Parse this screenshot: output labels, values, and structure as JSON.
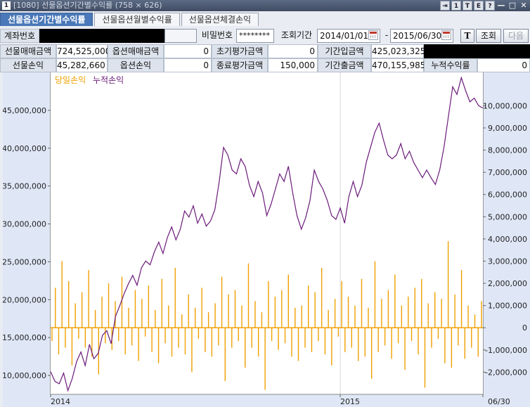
{
  "window": {
    "app_icon": "1",
    "title": "[1080] 선물옵션기간별수익률 (758 × 626)",
    "buttons": [
      "⇥",
      "1",
      "T",
      "E",
      "?",
      "—",
      "□",
      "✕"
    ]
  },
  "tabs": [
    {
      "label": "선물옵션기간별수익률",
      "active": true
    },
    {
      "label": "선물옵션월별수익률",
      "active": false
    },
    {
      "label": "선물옵션체결손익",
      "active": false
    }
  ],
  "form": {
    "account_label": "계좌번호",
    "password_label": "비밀번호",
    "password_value": "********",
    "period_label": "조회기간",
    "start_date": "2014/01/01",
    "date_sep": "-",
    "end_date": "2015/06/30",
    "t_button": "T",
    "search_button": "조회",
    "next_button": "다음"
  },
  "summary": {
    "row1": [
      {
        "label": "선물매매금액",
        "value": "724,525,000"
      },
      {
        "label": "옵션매매금액",
        "value": "0"
      },
      {
        "label": "초기평가금액",
        "value": "0"
      },
      {
        "label": "기간입금액",
        "value": "425,023,325"
      }
    ],
    "row2": [
      {
        "label": "선물손익",
        "value": "45,282,660"
      },
      {
        "label": "옵션손익",
        "value": "0"
      },
      {
        "label": "종료평가금액",
        "value": "150,000"
      },
      {
        "label": "기간출금액",
        "value": "470,155,985"
      },
      {
        "label": "누적수익률",
        "value": "0"
      }
    ]
  },
  "colors": {
    "daily": "#f0a000",
    "cumulative": "#6b1a7a",
    "active_tab": "#4a78b8"
  },
  "chart_data": {
    "type": "bar+line",
    "legend": [
      {
        "name": "당일손익",
        "color": "#f0a000"
      },
      {
        "name": "누적손익",
        "color": "#6b1a7a"
      }
    ],
    "left_axis": {
      "min": 7500000,
      "max": 50000000,
      "ticks": [
        "10,000,000",
        "15,000,000",
        "20,000,000",
        "25,000,000",
        "30,000,000",
        "35,000,000",
        "40,000,000",
        "45,000,000"
      ],
      "tick_values": [
        10000000,
        15000000,
        20000000,
        25000000,
        30000000,
        35000000,
        40000000,
        45000000
      ]
    },
    "right_axis": {
      "min": -3000000,
      "max": 11500000,
      "ticks": [
        "10,000,000",
        "9,000,000",
        "8,000,000",
        "7,000,000",
        "6,000,000",
        "5,000,000",
        "4,000,000",
        "3,000,000",
        "2,000,000",
        "1,000,000",
        "0",
        "-1,000,000",
        "-2,000,000"
      ],
      "tick_values": [
        10000000,
        9000000,
        8000000,
        7000000,
        6000000,
        5000000,
        4000000,
        3000000,
        2000000,
        1000000,
        0,
        -1000000,
        -2000000
      ]
    },
    "x_labels": [
      {
        "label": "2014",
        "pos": 0.0
      },
      {
        "label": "2015",
        "pos": 0.67
      },
      {
        "label": "06/30",
        "pos": 1.0
      }
    ],
    "cumulative_series": {
      "name": "누적손익",
      "points": [
        [
          0.0,
          10500000
        ],
        [
          0.01,
          9200000
        ],
        [
          0.02,
          8900000
        ],
        [
          0.03,
          10300000
        ],
        [
          0.04,
          8000000
        ],
        [
          0.05,
          9600000
        ],
        [
          0.06,
          11800000
        ],
        [
          0.07,
          13100000
        ],
        [
          0.08,
          11300000
        ],
        [
          0.09,
          14100000
        ],
        [
          0.1,
          12200000
        ],
        [
          0.11,
          12900000
        ],
        [
          0.12,
          15300000
        ],
        [
          0.13,
          15900000
        ],
        [
          0.14,
          14200000
        ],
        [
          0.15,
          17800000
        ],
        [
          0.16,
          19200000
        ],
        [
          0.17,
          20800000
        ],
        [
          0.18,
          22100000
        ],
        [
          0.19,
          23200000
        ],
        [
          0.2,
          21900000
        ],
        [
          0.21,
          24200000
        ],
        [
          0.22,
          25100000
        ],
        [
          0.23,
          24600000
        ],
        [
          0.24,
          26300000
        ],
        [
          0.25,
          27600000
        ],
        [
          0.26,
          26100000
        ],
        [
          0.27,
          28200000
        ],
        [
          0.28,
          29600000
        ],
        [
          0.29,
          27900000
        ],
        [
          0.3,
          29300000
        ],
        [
          0.31,
          31700000
        ],
        [
          0.32,
          30900000
        ],
        [
          0.33,
          32400000
        ],
        [
          0.34,
          30100000
        ],
        [
          0.35,
          31300000
        ],
        [
          0.36,
          29700000
        ],
        [
          0.37,
          30400000
        ],
        [
          0.38,
          31900000
        ],
        [
          0.39,
          35600000
        ],
        [
          0.4,
          40100000
        ],
        [
          0.41,
          39100000
        ],
        [
          0.42,
          37100000
        ],
        [
          0.43,
          36600000
        ],
        [
          0.44,
          38600000
        ],
        [
          0.45,
          37600000
        ],
        [
          0.46,
          35100000
        ],
        [
          0.47,
          33600000
        ],
        [
          0.48,
          35600000
        ],
        [
          0.49,
          34100000
        ],
        [
          0.5,
          31100000
        ],
        [
          0.51,
          32600000
        ],
        [
          0.52,
          34600000
        ],
        [
          0.53,
          36600000
        ],
        [
          0.54,
          35600000
        ],
        [
          0.55,
          37600000
        ],
        [
          0.56,
          34100000
        ],
        [
          0.57,
          31100000
        ],
        [
          0.58,
          29300000
        ],
        [
          0.59,
          30800000
        ],
        [
          0.6,
          33100000
        ],
        [
          0.61,
          37100000
        ],
        [
          0.62,
          35600000
        ],
        [
          0.63,
          34600000
        ],
        [
          0.64,
          33100000
        ],
        [
          0.65,
          31100000
        ],
        [
          0.66,
          30600000
        ],
        [
          0.67,
          32100000
        ],
        [
          0.68,
          30100000
        ],
        [
          0.69,
          33600000
        ],
        [
          0.7,
          35600000
        ],
        [
          0.71,
          33600000
        ],
        [
          0.72,
          35100000
        ],
        [
          0.73,
          38100000
        ],
        [
          0.74,
          40100000
        ],
        [
          0.75,
          42100000
        ],
        [
          0.76,
          43300000
        ],
        [
          0.77,
          41100000
        ],
        [
          0.78,
          39100000
        ],
        [
          0.79,
          38600000
        ],
        [
          0.8,
          39100000
        ],
        [
          0.81,
          40600000
        ],
        [
          0.82,
          38600000
        ],
        [
          0.83,
          39600000
        ],
        [
          0.84,
          38100000
        ],
        [
          0.85,
          37100000
        ],
        [
          0.86,
          36100000
        ],
        [
          0.87,
          37100000
        ],
        [
          0.88,
          36100000
        ],
        [
          0.89,
          35200000
        ],
        [
          0.9,
          37100000
        ],
        [
          0.91,
          40100000
        ],
        [
          0.92,
          44100000
        ],
        [
          0.93,
          48100000
        ],
        [
          0.94,
          47100000
        ],
        [
          0.95,
          49300000
        ],
        [
          0.96,
          47600000
        ],
        [
          0.97,
          46100000
        ],
        [
          0.98,
          46600000
        ],
        [
          0.99,
          45600000
        ],
        [
          1.0,
          45300000
        ]
      ]
    },
    "daily_series": {
      "name": "당일손익",
      "values": [
        -600000,
        1800000,
        -1200000,
        3000000,
        -900000,
        2100000,
        -1700000,
        1100000,
        -500000,
        1600000,
        -900000,
        2600000,
        -1300000,
        800000,
        -2100000,
        1400000,
        -700000,
        2000000,
        -1000000,
        1200000,
        -600000,
        2300000,
        -1200000,
        900000,
        -800000,
        1700000,
        -1500000,
        1300000,
        -400000,
        1900000,
        -1100000,
        800000,
        -1600000,
        2200000,
        -700000,
        1000000,
        -1300000,
        2700000,
        -900000,
        600000,
        -1200000,
        1500000,
        -2000000,
        900000,
        -500000,
        1800000,
        -1100000,
        700000,
        -1300000,
        1100000,
        -800000,
        2300000,
        -2400000,
        1500000,
        -900000,
        1700000,
        -600000,
        1000000,
        -1800000,
        2900000,
        -900000,
        1200000,
        -1300000,
        700000,
        -2800000,
        2100000,
        -600000,
        1400000,
        -1000000,
        1700000,
        -700000,
        2400000,
        -1300000,
        900000,
        -1500000,
        1000000,
        -900000,
        1900000,
        -1100000,
        1600000,
        -600000,
        2700000,
        -1200000,
        800000,
        -1700000,
        1300000,
        -400000,
        2100000,
        -1100000,
        1400000,
        -900000,
        1000000,
        -1500000,
        2200000,
        -1300000,
        900000,
        -2300000,
        3000000,
        -1100000,
        1300000,
        -800000,
        1700000,
        -1400000,
        2400000,
        -700000,
        1000000,
        -1900000,
        1400000,
        -600000,
        1800000,
        -1200000,
        2200000,
        -2700000,
        1100000,
        -900000,
        1600000,
        -500000,
        1300000,
        -1600000,
        3900000,
        -1800000,
        1500000,
        -800000,
        2600000,
        -1400000,
        1000000,
        -900000,
        600000,
        -1300000,
        1200000
      ]
    }
  }
}
